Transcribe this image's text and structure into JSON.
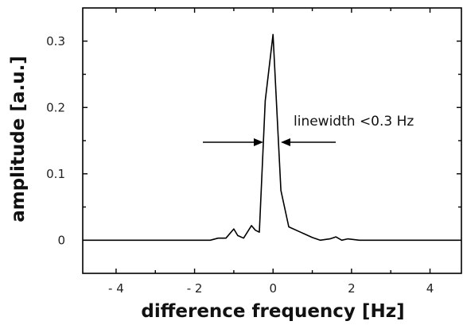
{
  "chart_data": {
    "type": "line",
    "title": "",
    "xlabel": "difference frequency [Hz]",
    "ylabel": "amplitude [a.u.]",
    "xlim": [
      -4.85,
      4.8
    ],
    "ylim": [
      -0.05,
      0.35
    ],
    "x_ticks": [
      -4,
      -2,
      0,
      2,
      4
    ],
    "x_tick_labels": [
      "- 4",
      "- 2",
      "0",
      "2",
      "4"
    ],
    "y_ticks": [
      0,
      0.1,
      0.2,
      0.3
    ],
    "y_tick_labels": [
      "0",
      "0.1",
      "0.2",
      "0.3"
    ],
    "grid": false,
    "series": [
      {
        "name": "",
        "color": "#000000",
        "x": [
          -4.85,
          -4.5,
          -4.0,
          -3.5,
          -3.0,
          -2.5,
          -2.0,
          -1.6,
          -1.4,
          -1.2,
          -1.0,
          -0.9,
          -0.75,
          -0.55,
          -0.45,
          -0.35,
          -0.2,
          0.0,
          0.2,
          0.4,
          0.7,
          1.0,
          1.2,
          1.45,
          1.6,
          1.75,
          1.9,
          2.2,
          2.6,
          3.0,
          3.5,
          4.0,
          4.5,
          4.8
        ],
        "y": [
          0.0,
          0.0,
          0.0,
          0.0,
          0.0,
          0.0,
          0.0,
          0.0,
          0.003,
          0.003,
          0.017,
          0.007,
          0.003,
          0.022,
          0.015,
          0.012,
          0.21,
          0.31,
          0.075,
          0.02,
          0.012,
          0.004,
          0.0,
          0.002,
          0.005,
          0.0,
          0.002,
          0.0,
          0.0,
          0.0,
          0.0,
          0.0,
          0.0,
          0.0
        ]
      }
    ],
    "annotations": [
      {
        "text": "linewidth <0.3 Hz"
      }
    ]
  }
}
